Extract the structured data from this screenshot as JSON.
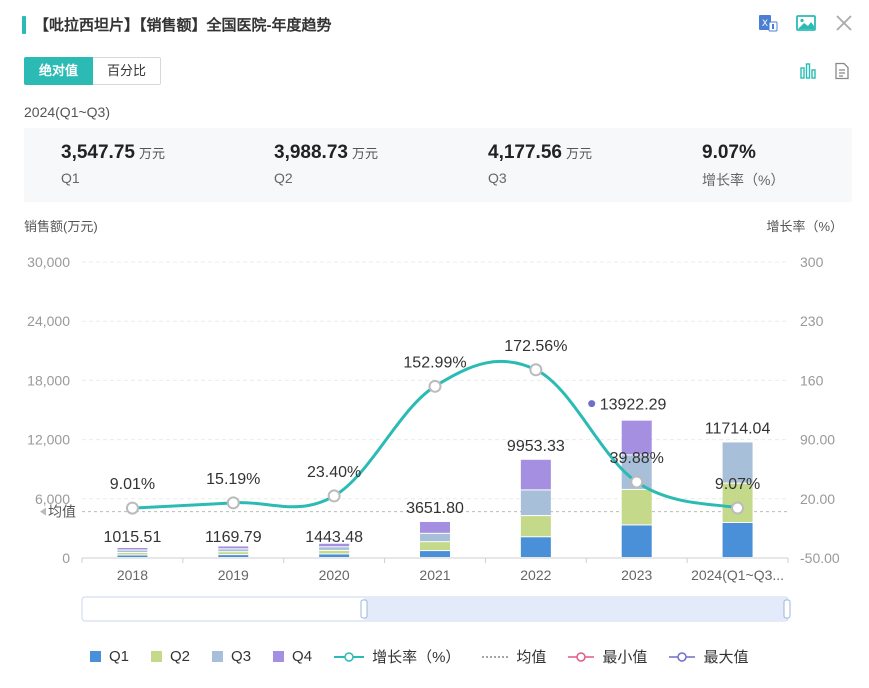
{
  "header": {
    "title": "【吡拉西坦片】【销售额】全国医院-年度趋势",
    "icons": [
      "excel-export-icon",
      "image-export-icon",
      "close-icon"
    ]
  },
  "tabs": [
    {
      "label": "绝对值",
      "active": true
    },
    {
      "label": "百分比",
      "active": false
    }
  ],
  "view_icons": [
    "bar-chart-icon",
    "document-icon"
  ],
  "period": "2024(Q1~Q3)",
  "stats": [
    {
      "value": "3,547.75",
      "unit": "万元",
      "label": "Q1"
    },
    {
      "value": "3,988.73",
      "unit": "万元",
      "label": "Q2"
    },
    {
      "value": "4,177.56",
      "unit": "万元",
      "label": "Q3"
    },
    {
      "value": "9.07%",
      "unit": "",
      "label": "增长率（%）"
    }
  ],
  "chart_data": {
    "type": "bar",
    "stacked": true,
    "ylabel": "销售额(万元)",
    "y2label": "增长率（%）",
    "categories": [
      "2018",
      "2019",
      "2020",
      "2021",
      "2022",
      "2023",
      "2024(Q1~Q3..."
    ],
    "ylim": [
      0,
      30000
    ],
    "yticks": [
      "0",
      "6,000",
      "12,000",
      "18,000",
      "24,000",
      "30,000"
    ],
    "y2lim": [
      -50,
      300
    ],
    "y2ticks": [
      "-50.00",
      "20.00",
      "90.00",
      "160",
      "230",
      "300"
    ],
    "series": [
      {
        "name": "Q1",
        "color": "#4a90d9",
        "values": [
          254,
          292,
          361,
          700,
          2100,
          3300,
          3547.75
        ]
      },
      {
        "name": "Q2",
        "color": "#c5d98a",
        "values": [
          254,
          292,
          361,
          900,
          2150,
          3600,
          3988.73
        ]
      },
      {
        "name": "Q3",
        "color": "#a7bfd9",
        "values": [
          254,
          293,
          361,
          850,
          2600,
          3500,
          4177.56
        ]
      },
      {
        "name": "Q4",
        "color": "#a58fe0",
        "values": [
          253.51,
          292.79,
          360.48,
          1201.8,
          3103.33,
          3522.29,
          0
        ]
      }
    ],
    "totals": [
      1015.51,
      1169.79,
      1443.48,
      3651.8,
      9953.33,
      13922.29,
      11714.04
    ],
    "total_labels": [
      "1015.51",
      "1169.79",
      "1443.48",
      "3651.80",
      "9953.33",
      "13922.29",
      "11714.04"
    ],
    "growth": {
      "name": "增长率（%）",
      "color": "#2bbbb4",
      "values": [
        9.01,
        15.19,
        23.4,
        152.99,
        172.56,
        39.88,
        9.07
      ],
      "labels": [
        "9.01%",
        "15.19%",
        "23.40%",
        "152.99%",
        "172.56%",
        "39.88%",
        "9.07%"
      ]
    },
    "average": {
      "label": "均值",
      "value": 4700
    },
    "legend": [
      "Q1",
      "Q2",
      "Q3",
      "Q4",
      "增长率（%）",
      "均值",
      "最小值",
      "最大值"
    ],
    "legend_position": "bottom"
  }
}
